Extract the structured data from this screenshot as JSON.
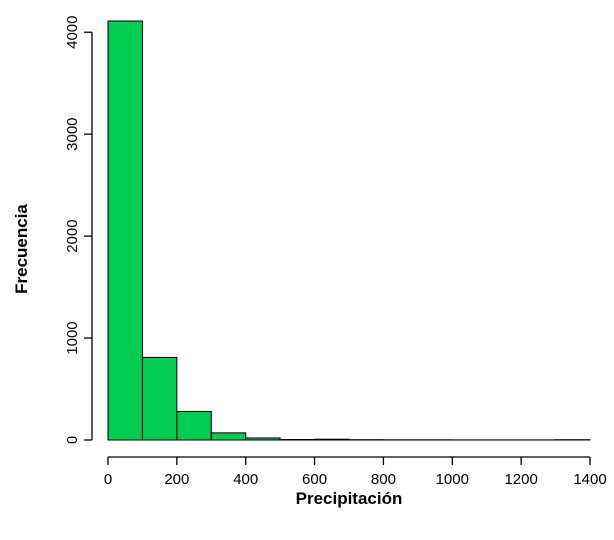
{
  "chart_data": {
    "type": "bar",
    "subtype": "histogram",
    "xlabel": "Precipitación",
    "ylabel": "Frecuencia",
    "bar_color": "#00cc52",
    "bin_edges": [
      0,
      100,
      200,
      300,
      400,
      500,
      600,
      700,
      800,
      900,
      1000,
      1100,
      1200,
      1300,
      1400
    ],
    "values": [
      4110,
      810,
      280,
      70,
      20,
      5,
      8,
      3,
      2,
      2,
      1,
      1,
      1,
      3
    ],
    "xlim": [
      0,
      1400
    ],
    "ylim": [
      0,
      4110
    ],
    "x_ticks": [
      0,
      200,
      400,
      600,
      800,
      1000,
      1200,
      1400
    ],
    "x_tick_labels": [
      "0",
      "200",
      "400",
      "600",
      "800",
      "1000",
      "1200",
      "1400"
    ],
    "y_ticks": [
      0,
      1000,
      2000,
      3000,
      4000
    ],
    "y_tick_labels": [
      "0",
      "1000",
      "2000",
      "3000",
      "4000"
    ],
    "grid": false,
    "legend": "none"
  }
}
